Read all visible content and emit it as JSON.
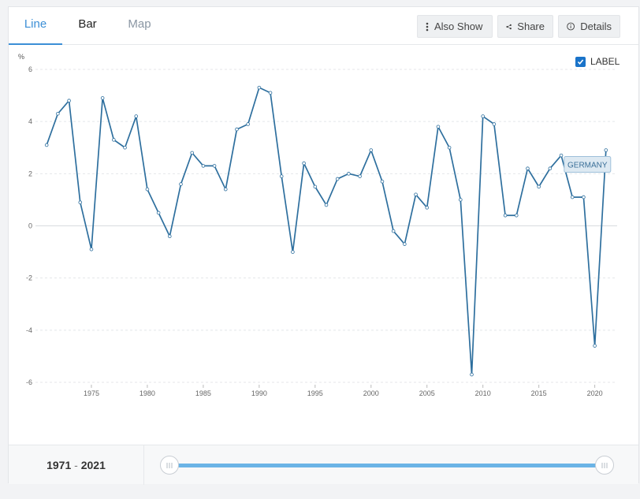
{
  "tabs": [
    {
      "label": "Line"
    },
    {
      "label": "Bar"
    },
    {
      "label": "Map"
    }
  ],
  "toolbar": {
    "also_show": {
      "label": "Also Show",
      "icon": "vertical-dots-icon"
    },
    "share": {
      "label": "Share",
      "icon": "share-icon"
    },
    "details": {
      "label": "Details",
      "icon": "info-icon"
    }
  },
  "label_toggle": {
    "label": "LABEL",
    "checked": true
  },
  "range": {
    "start": "1971",
    "separator": "-",
    "end": "2021"
  },
  "colors": {
    "accent": "#3c8fd6",
    "line": "#2e6f9e",
    "slider": "#6bb4e6"
  },
  "chart_data": {
    "type": "line",
    "ylabel": "%",
    "ylim": [
      -6,
      6
    ],
    "xlim": [
      1970,
      2022
    ],
    "yticks": [
      6,
      4,
      2,
      0,
      -2,
      -4,
      -6
    ],
    "xticks": [
      1975,
      1980,
      1985,
      1990,
      1995,
      2000,
      2005,
      2010,
      2015,
      2020
    ],
    "grid": true,
    "series": [
      {
        "name": "GERMANY",
        "x": [
          1971,
          1972,
          1973,
          1974,
          1975,
          1976,
          1977,
          1978,
          1979,
          1980,
          1981,
          1982,
          1983,
          1984,
          1985,
          1986,
          1987,
          1988,
          1989,
          1990,
          1991,
          1992,
          1993,
          1994,
          1995,
          1996,
          1997,
          1998,
          1999,
          2000,
          2001,
          2002,
          2003,
          2004,
          2005,
          2006,
          2007,
          2008,
          2009,
          2010,
          2011,
          2012,
          2013,
          2014,
          2015,
          2016,
          2017,
          2018,
          2019,
          2020,
          2021
        ],
        "values": [
          3.1,
          4.3,
          4.8,
          0.9,
          -0.9,
          4.9,
          3.3,
          3.0,
          4.2,
          1.4,
          0.5,
          -0.4,
          1.6,
          2.8,
          2.3,
          2.3,
          1.4,
          3.7,
          3.9,
          5.3,
          5.1,
          1.9,
          -1.0,
          2.4,
          1.5,
          0.8,
          1.8,
          2.0,
          1.9,
          2.9,
          1.7,
          -0.2,
          -0.7,
          1.2,
          0.7,
          3.8,
          3.0,
          1.0,
          -5.7,
          4.2,
          3.9,
          0.4,
          0.4,
          2.2,
          1.5,
          2.2,
          2.7,
          1.1,
          1.1,
          -4.6,
          2.9
        ]
      }
    ]
  }
}
